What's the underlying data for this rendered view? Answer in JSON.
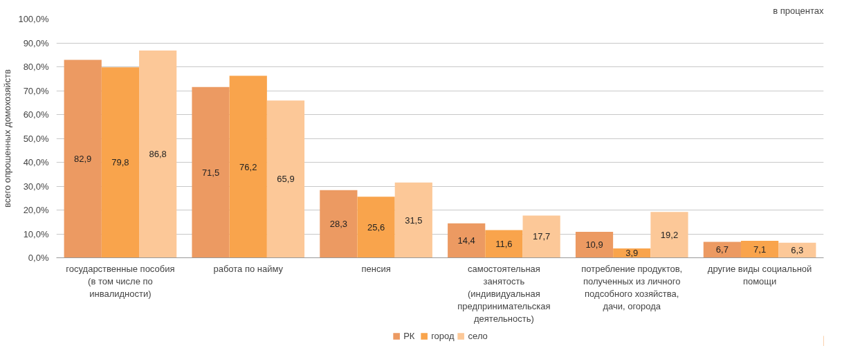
{
  "chart_data": {
    "type": "bar",
    "ylabel": "всего опрошенных домохозяйств",
    "annotations": [
      "в процентах"
    ],
    "categories": [
      "государственные пособия (в том числе по инвалидности)",
      "работа по найму",
      "пенсия",
      "самостоятельная занятость (индивидуальная предпринимательская деятельность)",
      "потребление продуктов, полученных из личного подсобного хозяйства, дачи, огорода",
      "другие виды социальной помощи"
    ],
    "series": [
      {
        "name": "РК",
        "color": "#ec9a62",
        "values": [
          82.9,
          71.5,
          28.3,
          14.4,
          10.9,
          6.7
        ],
        "value_labels": [
          "82,9",
          "71,5",
          "28,3",
          "14,4",
          "10,9",
          "6,7"
        ]
      },
      {
        "name": "город",
        "color": "#f9a44c",
        "values": [
          79.8,
          76.2,
          25.6,
          11.6,
          3.9,
          7.1
        ],
        "value_labels": [
          "79,8",
          "76,2",
          "25,6",
          "11,6",
          "3,9",
          "7,1"
        ]
      },
      {
        "name": "село",
        "color": "#fcc898",
        "values": [
          86.8,
          65.9,
          31.5,
          17.7,
          19.2,
          6.3
        ],
        "value_labels": [
          "86,8",
          "65,9",
          "31,5",
          "17,7",
          "19,2",
          "6,3"
        ]
      }
    ],
    "ylim": [
      0,
      100
    ],
    "yticks": [
      {
        "value": 0,
        "label": "0,0%"
      },
      {
        "value": 10,
        "label": "10,0%"
      },
      {
        "value": 20,
        "label": "20,0%"
      },
      {
        "value": 30,
        "label": "30,0%"
      },
      {
        "value": 40,
        "label": "40,0%"
      },
      {
        "value": 50,
        "label": "50,0%"
      },
      {
        "value": 60,
        "label": "60,0%"
      },
      {
        "value": 70,
        "label": "70,0%"
      },
      {
        "value": 80,
        "label": "80,0%"
      },
      {
        "value": 90,
        "label": "90,0%"
      },
      {
        "value": 100,
        "label": "100,0%"
      }
    ],
    "grid": "y",
    "legend": "bottom"
  }
}
